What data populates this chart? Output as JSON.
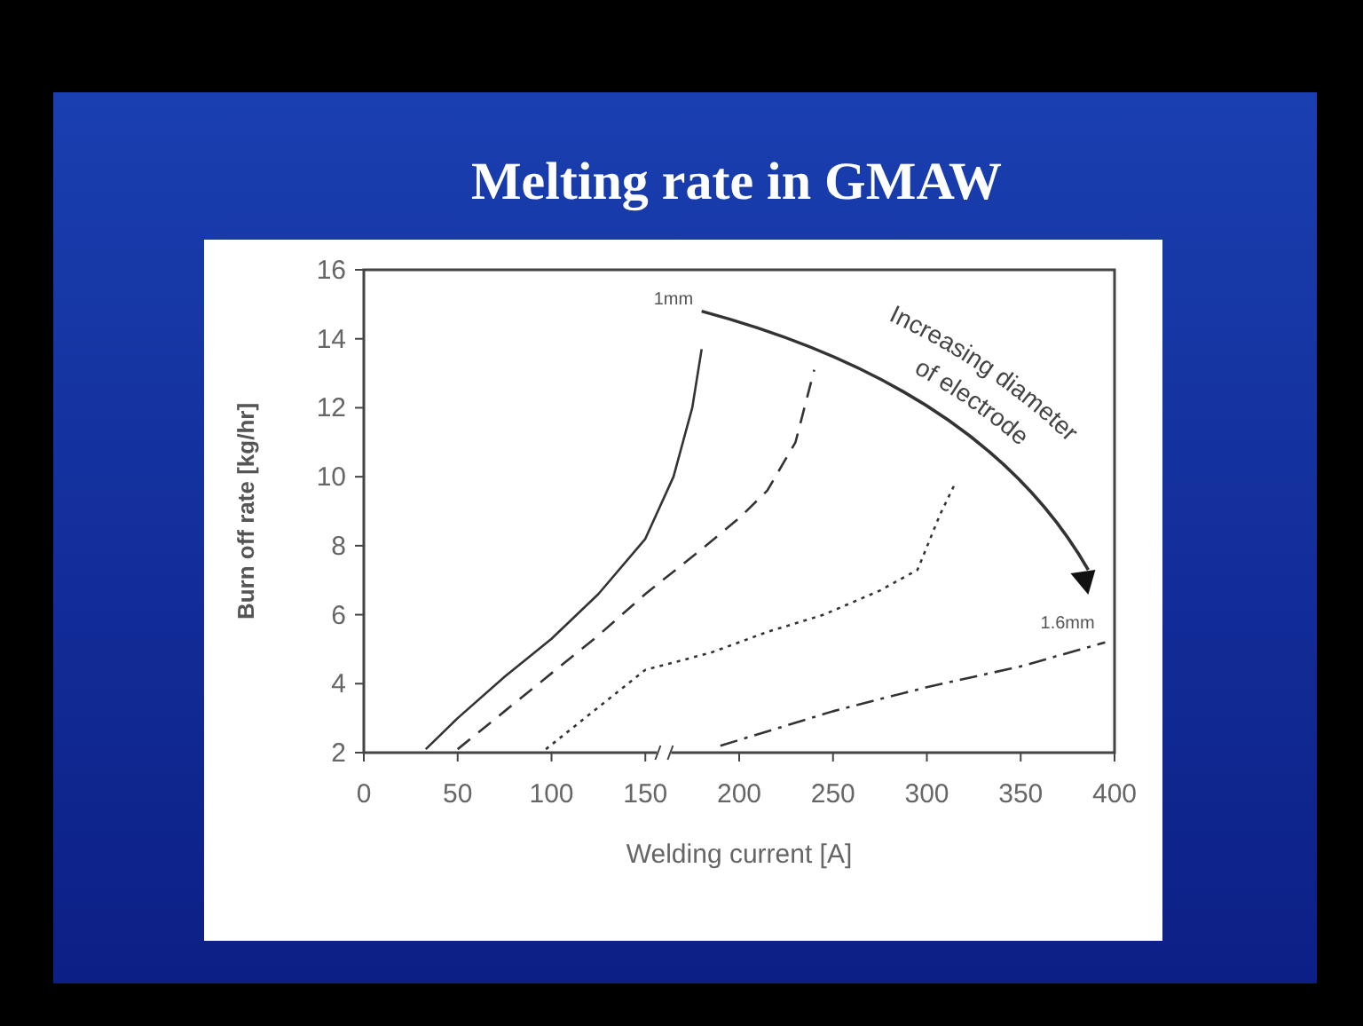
{
  "chart_data": {
    "type": "line",
    "title": "Melting rate in GMAW",
    "xlabel": "Welding current [A]",
    "ylabel": "Burn off rate [kg/hr]",
    "xlim": [
      0,
      400
    ],
    "xticks": [
      0,
      50,
      100,
      150,
      200,
      250,
      300,
      350,
      400
    ],
    "ylim": [
      2,
      16
    ],
    "yticks": [
      2,
      4,
      6,
      8,
      10,
      12,
      14,
      16
    ],
    "grid": false,
    "series": [
      {
        "color": "#333333",
        "line_style": "solid",
        "x": [
          33,
          50,
          75,
          100,
          125,
          150,
          165,
          175,
          180
        ],
        "values": [
          2.1,
          3,
          4.2,
          5.3,
          6.6,
          8.2,
          10,
          12,
          13.7
        ]
      },
      {
        "color": "#333333",
        "line_style": "dashed",
        "x": [
          50,
          75,
          100,
          125,
          150,
          180,
          200,
          215,
          230,
          240
        ],
        "values": [
          2.1,
          3.2,
          4.3,
          5.4,
          6.6,
          7.9,
          8.8,
          9.6,
          11,
          13.1
        ]
      },
      {
        "color": "#333333",
        "line_style": "dotted",
        "x": [
          97,
          120,
          150,
          185,
          215,
          245,
          275,
          295,
          307,
          315
        ],
        "values": [
          2.1,
          3.1,
          4.4,
          4.9,
          5.5,
          6,
          6.7,
          7.3,
          8.9,
          9.8
        ]
      },
      {
        "color": "#333333",
        "line_style": "dashdot",
        "x": [
          190,
          250,
          300,
          350,
          395
        ],
        "values": [
          2.2,
          3.2,
          3.9,
          4.5,
          5.2
        ]
      }
    ],
    "annotations": [
      "1mm",
      "1.6mm",
      "Increasing diameter of electrode"
    ]
  }
}
